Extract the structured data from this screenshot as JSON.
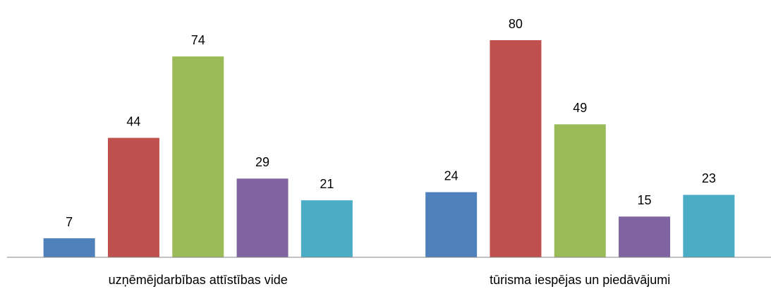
{
  "chart_data": {
    "type": "bar",
    "categories": [
      "uzņēmējdarbības attīstības vide",
      "tūrisma iespējas un piedāvājumi"
    ],
    "series": [
      {
        "color": "#4f81bd",
        "values": [
          7,
          24
        ]
      },
      {
        "color": "#c0504d",
        "values": [
          44,
          80
        ]
      },
      {
        "color": "#9bbb59",
        "values": [
          74,
          49
        ]
      },
      {
        "color": "#8064a2",
        "values": [
          29,
          15
        ]
      },
      {
        "color": "#4bacc6",
        "values": [
          21,
          23
        ]
      }
    ],
    "ylim": [
      0,
      80
    ]
  }
}
